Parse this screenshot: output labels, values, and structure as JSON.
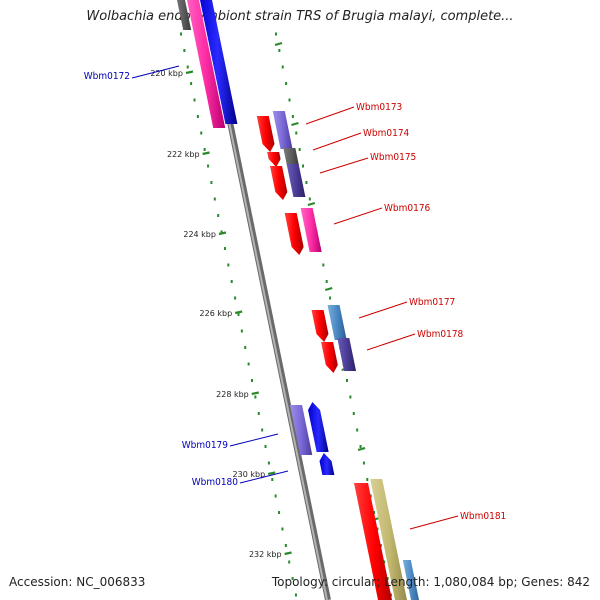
{
  "title": "Wolbachia endosymbiont strain TRS of Brugia malayi, complete...",
  "footer": {
    "accession": "Accession: NC_006833",
    "summary": "Topology: circular; Length: 1,080,084 bp; Genes: 842"
  },
  "colors": {
    "forward_label": "#cc0000",
    "reverse_label": "#0000bb",
    "tick": "#2a8a2a",
    "backbone": "#888888"
  },
  "ticks": [
    "220 kbp",
    "222 kbp",
    "224 kbp",
    "226 kbp",
    "228 kbp",
    "230 kbp",
    "232 kbp"
  ],
  "genes": [
    {
      "name": "Wbm0172",
      "strand": "reverse"
    },
    {
      "name": "Wbm0173",
      "strand": "forward"
    },
    {
      "name": "Wbm0174",
      "strand": "forward"
    },
    {
      "name": "Wbm0175",
      "strand": "forward"
    },
    {
      "name": "Wbm0176",
      "strand": "forward"
    },
    {
      "name": "Wbm0177",
      "strand": "forward"
    },
    {
      "name": "Wbm0178",
      "strand": "forward"
    },
    {
      "name": "Wbm0179",
      "strand": "reverse"
    },
    {
      "name": "Wbm0180",
      "strand": "reverse"
    },
    {
      "name": "Wbm0181",
      "strand": "forward"
    }
  ]
}
